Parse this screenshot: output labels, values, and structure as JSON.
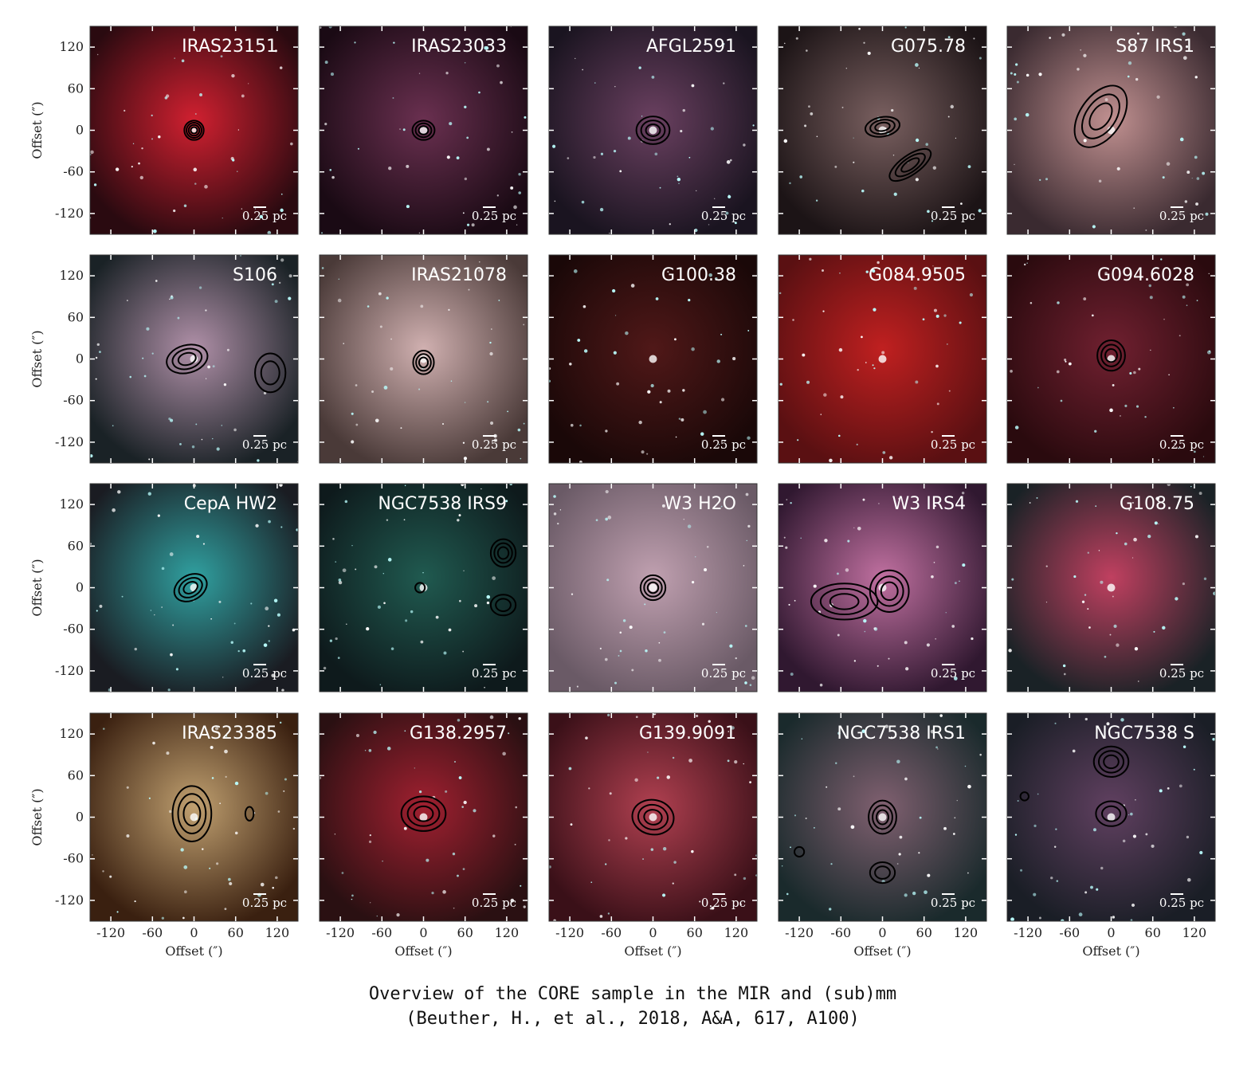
{
  "figure": {
    "panels": [
      {
        "name": "IRAS23151"
      },
      {
        "name": "IRAS23033"
      },
      {
        "name": "AFGL2591"
      },
      {
        "name": "G075.78"
      },
      {
        "name": "S87 IRS1"
      },
      {
        "name": "S106"
      },
      {
        "name": "IRAS21078"
      },
      {
        "name": "G100.38"
      },
      {
        "name": "G084.9505"
      },
      {
        "name": "G094.6028"
      },
      {
        "name": "CepA HW2"
      },
      {
        "name": "NGC7538 IRS9"
      },
      {
        "name": "W3 H2O"
      },
      {
        "name": "W3 IRS4"
      },
      {
        "name": "G108.75"
      },
      {
        "name": "IRAS23385"
      },
      {
        "name": "G138.2957"
      },
      {
        "name": "G139.9091"
      },
      {
        "name": "NGC7538 IRS1"
      },
      {
        "name": "NGC7538 S"
      }
    ],
    "scale_label": "0.25 pc",
    "xlabel": "Offset (″)",
    "ylabel": "Offset (″)",
    "xlim": [
      -150,
      150
    ],
    "ylim": [
      -150,
      150
    ],
    "xticks": [
      -120,
      -60,
      0,
      60,
      120
    ],
    "yticks": [
      -120,
      -60,
      0,
      60,
      120
    ]
  },
  "caption": [
    "Overview of the CORE sample in the MIR and (sub)mm",
    "(Beuther, H., et al., 2018, A&A, 617, A100)"
  ]
}
